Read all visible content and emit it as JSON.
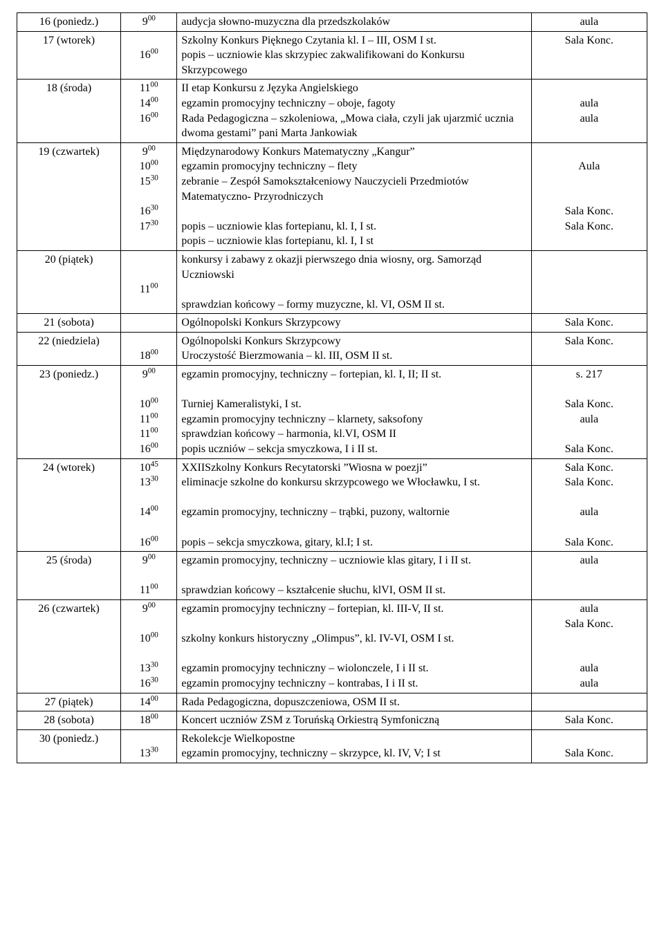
{
  "table": {
    "font_family": "Times New Roman",
    "font_size_pt": 12,
    "border_color": "#000000",
    "background_color": "#ffffff",
    "text_color": "#000000",
    "column_widths_pct": [
      16,
      8,
      58,
      18
    ],
    "column_align": [
      "center",
      "center",
      "left",
      "center"
    ],
    "rows": [
      {
        "date": "16 (poniedz.)",
        "times": [
          {
            "h": "9",
            "m": "00"
          }
        ],
        "desc": [
          "audycja słowno-muzyczna dla przedszkolaków"
        ],
        "loc": [
          "aula"
        ]
      },
      {
        "date": "17 (wtorek)",
        "times": [
          {
            "h": "",
            "m": ""
          },
          {
            "h": "16",
            "m": "00"
          }
        ],
        "desc": [
          "Szkolny Konkurs Pięknego Czytania kl. I – III, OSM I st.",
          "popis – uczniowie klas skrzypiec zakwalifikowani do Konkursu Skrzypcowego"
        ],
        "loc": [
          "Sala Konc."
        ]
      },
      {
        "date": "18 (środa)",
        "times": [
          {
            "h": "11",
            "m": "00"
          },
          {
            "h": "14",
            "m": "00"
          },
          {
            "h": "16",
            "m": "00"
          }
        ],
        "desc": [
          "II etap Konkursu z Języka Angielskiego",
          "egzamin promocyjny techniczny – oboje, fagoty",
          "Rada Pedagogiczna – szkoleniowa, „Mowa ciała, czyli jak ujarzmić ucznia dwoma gestami” pani Marta Jankowiak"
        ],
        "loc": [
          "",
          "aula",
          "aula"
        ]
      },
      {
        "date": "19 (czwartek)",
        "times": [
          {
            "h": "9",
            "m": "00"
          },
          {
            "h": "10",
            "m": "00"
          },
          {
            "h": "15",
            "m": "30"
          },
          {
            "h": "",
            "m": ""
          },
          {
            "h": "16",
            "m": "30"
          },
          {
            "h": "17",
            "m": "30"
          }
        ],
        "desc": [
          "Międzynarodowy Konkurs Matematyczny „Kangur”",
          "egzamin promocyjny techniczny – flety",
          "zebranie – Zespół Samokształceniowy Nauczycieli Przedmiotów  Matematyczno- Przyrodniczych",
          "",
          "popis – uczniowie klas fortepianu, kl. I, I st.",
          "popis – uczniowie klas fortepianu, kl. I, I st"
        ],
        "loc": [
          "",
          "Aula",
          "",
          "",
          "Sala Konc.",
          "Sala Konc."
        ]
      },
      {
        "date": "20 (piątek)",
        "times": [
          {
            "h": "",
            "m": ""
          },
          {
            "h": "",
            "m": ""
          },
          {
            "h": "11",
            "m": "00"
          }
        ],
        "desc": [
          "konkursy i zabawy z okazji pierwszego dnia wiosny, org. Samorząd Uczniowski",
          "",
          "sprawdzian końcowy – formy muzyczne, kl. VI, OSM II st."
        ],
        "loc": [
          ""
        ]
      },
      {
        "date": "21 (sobota)",
        "times": [],
        "desc": [
          "Ogólnopolski Konkurs Skrzypcowy"
        ],
        "loc": [
          "Sala Konc."
        ]
      },
      {
        "date": "22 (niedziela)",
        "times": [
          {
            "h": "",
            "m": ""
          },
          {
            "h": "18",
            "m": "00"
          }
        ],
        "desc": [
          "Ogólnopolski Konkurs Skrzypcowy",
          "Uroczystość Bierzmowania – kl. III, OSM II st."
        ],
        "loc": [
          "Sala Konc."
        ]
      },
      {
        "date": "23 (poniedz.)",
        "times": [
          {
            "h": "9",
            "m": "00"
          },
          {
            "h": "",
            "m": ""
          },
          {
            "h": "10",
            "m": "00"
          },
          {
            "h": "11",
            "m": "00"
          },
          {
            "h": "11",
            "m": "00"
          },
          {
            "h": "16",
            "m": "00"
          }
        ],
        "desc": [
          "egzamin promocyjny, techniczny – fortepian, kl. I, II; II st.",
          "",
          "Turniej Kameralistyki, I st.",
          "egzamin promocyjny techniczny – klarnety, saksofony",
          "sprawdzian końcowy – harmonia, kl.VI, OSM II",
          "popis uczniów – sekcja smyczkowa, I i II st."
        ],
        "loc": [
          "s. 217",
          "",
          "Sala Konc.",
          "aula",
          "",
          "Sala Konc."
        ]
      },
      {
        "date": "24 (wtorek)",
        "times": [
          {
            "h": "10",
            "m": "45"
          },
          {
            "h": "13",
            "m": "30"
          },
          {
            "h": "",
            "m": ""
          },
          {
            "h": "14",
            "m": "00"
          },
          {
            "h": "",
            "m": ""
          },
          {
            "h": "16",
            "m": "00"
          }
        ],
        "desc": [
          "XXIISzkolny Konkurs Recytatorski ”Wiosna w poezji”",
          "eliminacje szkolne do konkursu skrzypcowego we Włocławku, I st.",
          "",
          "egzamin promocyjny, techniczny – trąbki, puzony, waltornie",
          "",
          "popis – sekcja smyczkowa, gitary, kl.I; I st."
        ],
        "loc": [
          "Sala Konc.",
          "Sala Konc.",
          "",
          "aula",
          "",
          "Sala Konc."
        ]
      },
      {
        "date": "25 (środa)",
        "times": [
          {
            "h": "9",
            "m": "00"
          },
          {
            "h": "",
            "m": ""
          },
          {
            "h": "11",
            "m": "00"
          }
        ],
        "desc": [
          "egzamin promocyjny, techniczny – uczniowie klas gitary, I i II st.",
          "",
          "sprawdzian końcowy – kształcenie słuchu, klVI, OSM II st."
        ],
        "loc": [
          "aula"
        ]
      },
      {
        "date": "26 (czwartek)",
        "times": [
          {
            "h": "9",
            "m": "00"
          },
          {
            "h": "",
            "m": ""
          },
          {
            "h": "10",
            "m": "00"
          },
          {
            "h": "",
            "m": ""
          },
          {
            "h": "13",
            "m": "30"
          },
          {
            "h": "16",
            "m": "30"
          }
        ],
        "desc": [
          "egzamin promocyjny techniczny – fortepian, kl. III-V, II st.",
          "",
          "szkolny konkurs historyczny „Olimpus”, kl. IV-VI, OSM I st.",
          "",
          "egzamin promocyjny techniczny – wiolonczele, I i II st.",
          "egzamin promocyjny techniczny – kontrabas, I i II st."
        ],
        "loc": [
          "aula",
          "Sala Konc.",
          "",
          "",
          "aula",
          "aula"
        ]
      },
      {
        "date": "27 (piątek)",
        "times": [
          {
            "h": "14",
            "m": "00"
          }
        ],
        "desc": [
          "Rada Pedagogiczna, dopuszczeniowa, OSM II st."
        ],
        "loc": [
          ""
        ]
      },
      {
        "date": "28 (sobota)",
        "times": [
          {
            "h": "18",
            "m": "00"
          }
        ],
        "desc": [
          "Koncert uczniów ZSM z Toruńską Orkiestrą Symfoniczną"
        ],
        "loc": [
          "Sala Konc."
        ]
      },
      {
        "date": "30 (poniedz.)",
        "times": [
          {
            "h": "",
            "m": ""
          },
          {
            "h": "13",
            "m": "30"
          }
        ],
        "desc": [
          "Rekolekcje Wielkopostne",
          "egzamin promocyjny, techniczny – skrzypce, kl. IV, V; I st"
        ],
        "loc": [
          "",
          "Sala Konc."
        ]
      }
    ]
  }
}
